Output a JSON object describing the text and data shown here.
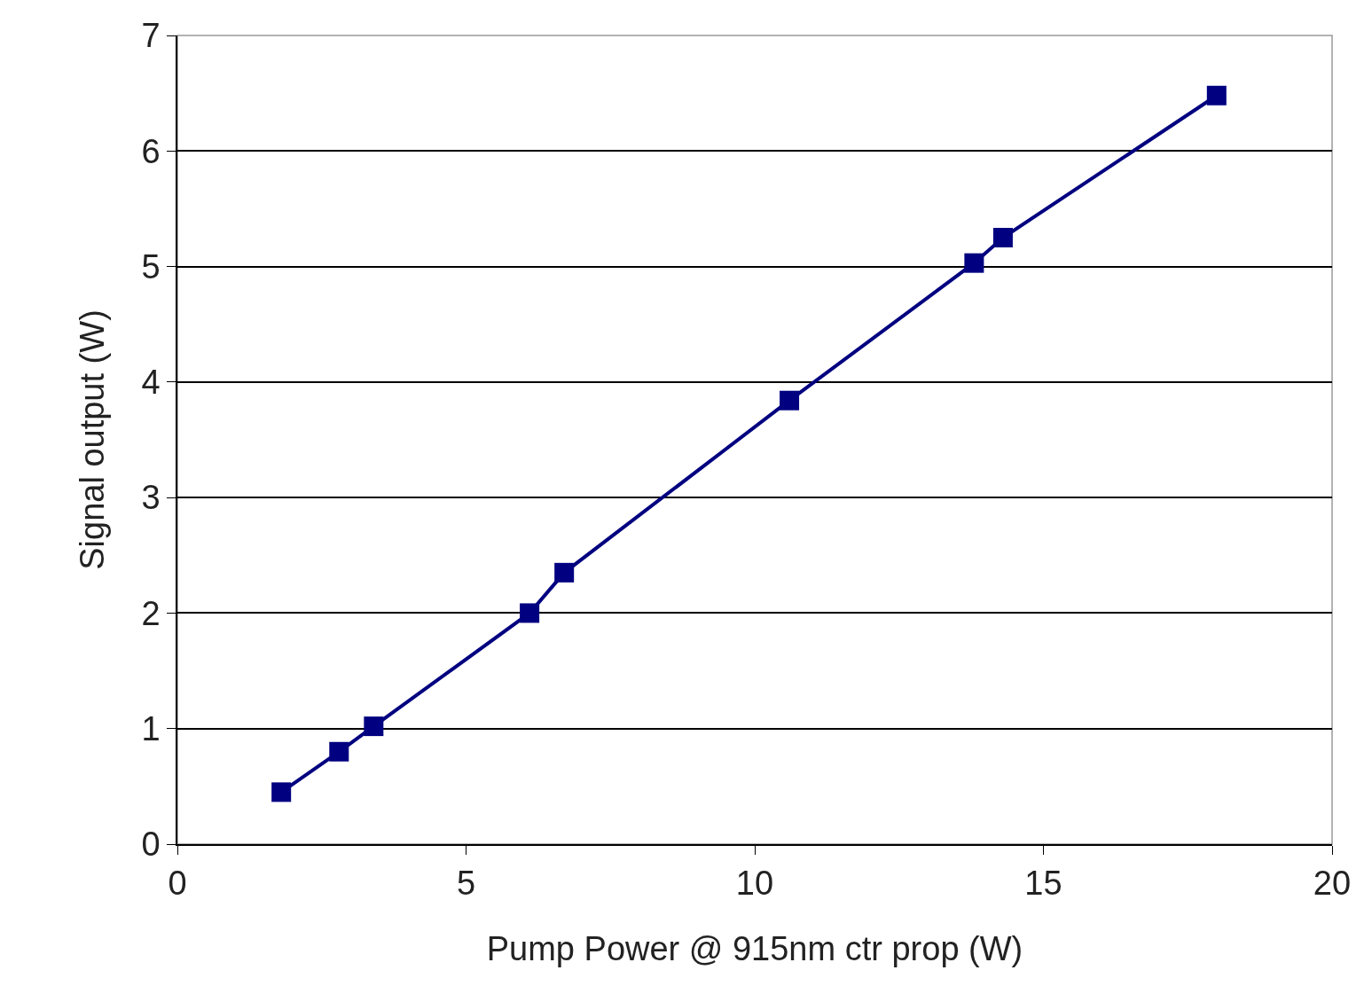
{
  "chart_data": {
    "type": "line",
    "xlabel": "Pump Power @ 915nm ctr prop (W)",
    "ylabel": "Signal output (W)",
    "x": [
      1.8,
      2.8,
      3.4,
      6.1,
      6.7,
      10.6,
      13.8,
      14.3,
      18.0
    ],
    "series": [
      {
        "color": "#000080",
        "values": [
          0.45,
          0.8,
          1.02,
          2.0,
          2.35,
          3.84,
          5.03,
          5.25,
          6.48
        ]
      }
    ],
    "xlim": [
      0,
      20
    ],
    "xticks": [
      0,
      5,
      10,
      15,
      20
    ],
    "ylim": [
      0,
      7
    ],
    "yticks": [
      0,
      1,
      2,
      3,
      4,
      5,
      6,
      7
    ],
    "grid": "y",
    "marker": "square",
    "line_style": "solid"
  }
}
